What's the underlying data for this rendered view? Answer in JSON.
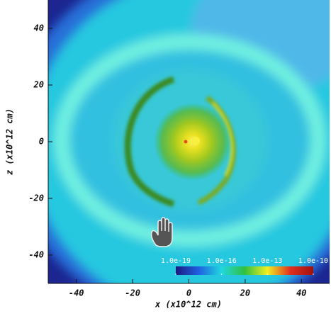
{
  "chart_data": {
    "type": "heatmap",
    "xlabel": "x (x10^12 cm)",
    "ylabel": "z (x10^12 cm)",
    "xlim": [
      -50,
      50
    ],
    "ylim": [
      -50,
      50
    ],
    "xticks": [
      -40,
      -20,
      0,
      20,
      40
    ],
    "yticks": [
      -40,
      -20,
      0,
      20,
      40
    ],
    "colorbar": {
      "log_scale": true,
      "lim": [
        1e-19,
        1e-10
      ],
      "ticks": [
        {
          "value": 1e-19,
          "label": "1.0e-19"
        },
        {
          "value": 1e-16,
          "label": "1.0e-16"
        },
        {
          "value": 1e-13,
          "label": "1.0e-13"
        },
        {
          "value": 1e-10,
          "label": "1.0e-10"
        }
      ],
      "colors": [
        "#1a1a80",
        "#2060e0",
        "#20d8e0",
        "#30c040",
        "#f0f020",
        "#e03020",
        "#a01010"
      ]
    }
  }
}
